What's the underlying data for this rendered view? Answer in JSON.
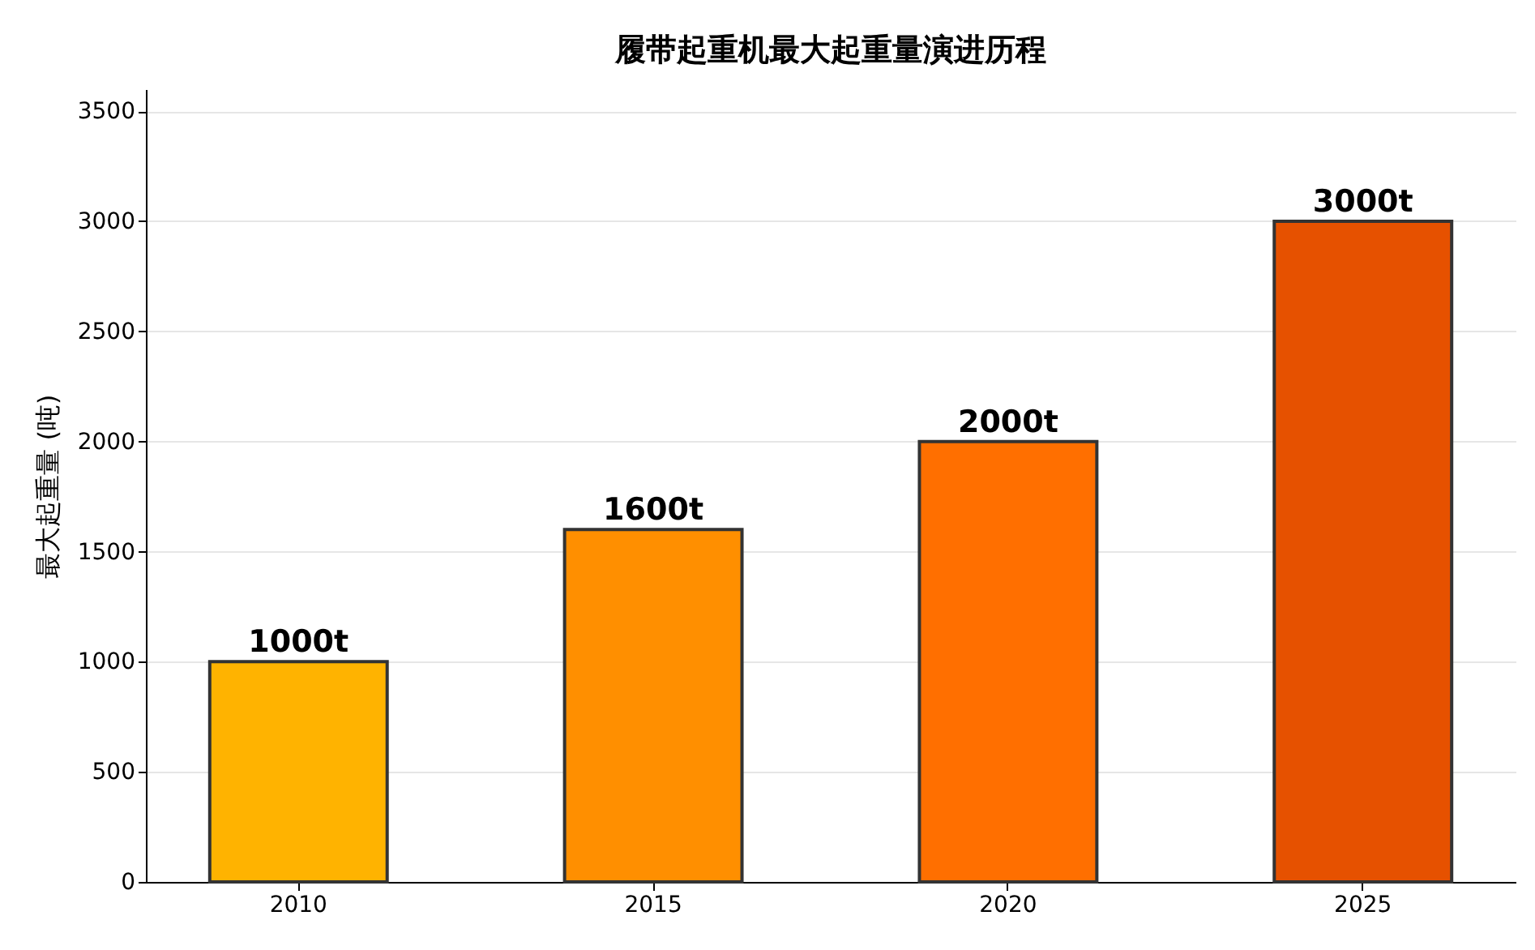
{
  "chart_data": {
    "type": "bar",
    "title": "履带起重机最大起重量演进历程",
    "ylabel": "最大起重量 (吨)",
    "categories": [
      "2010",
      "2015",
      "2020",
      "2025"
    ],
    "values": [
      1000,
      1600,
      2000,
      3000
    ],
    "colors": [
      "#ffb300",
      "#ff8f00",
      "#ff6f00",
      "#e65100"
    ],
    "value_labels": [
      "1000t",
      "1600t",
      "2000t",
      "3000t"
    ],
    "ylim": [
      0,
      3600
    ],
    "yticks": [
      0,
      500,
      1000,
      1500,
      2000,
      2500,
      3000,
      3500
    ],
    "grid": "y"
  }
}
